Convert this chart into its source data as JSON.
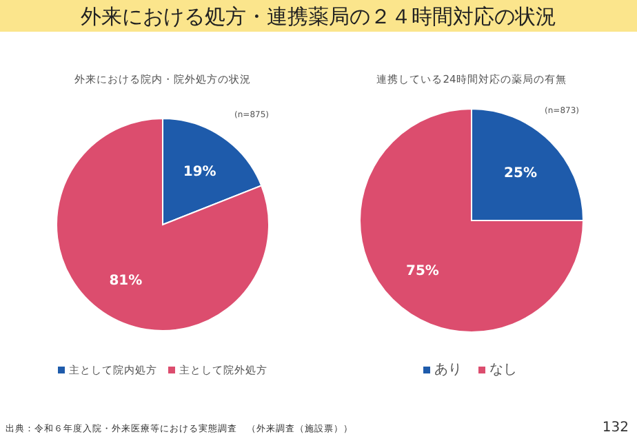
{
  "chart_data": [
    {
      "type": "other",
      "title": "外来における処方・連携薬局の２４時間対応の状況",
      "annotations": [
        "出典：令和６年度入院・外来医療等における実態調査　（外来調査（施設票））",
        "132"
      ]
    },
    {
      "type": "pie",
      "title": "外来における院内・院外処方の状況",
      "annotations": [
        "(n=875)"
      ],
      "categories": [
        "主として院内処方",
        "主として院外処方"
      ],
      "values": [
        19,
        81
      ],
      "value_labels": [
        "19%",
        "81%"
      ],
      "colors": [
        "#1e5bab",
        "#dc4d6e"
      ],
      "legend": "bottom"
    },
    {
      "type": "pie",
      "title": "連携している24時間対応の薬局の有無",
      "annotations": [
        "(n=873)"
      ],
      "categories": [
        "あり",
        "なし"
      ],
      "values": [
        25,
        75
      ],
      "value_labels": [
        "25%",
        "75%"
      ],
      "colors": [
        "#1e5bab",
        "#dc4d6e"
      ],
      "legend": "bottom"
    }
  ]
}
